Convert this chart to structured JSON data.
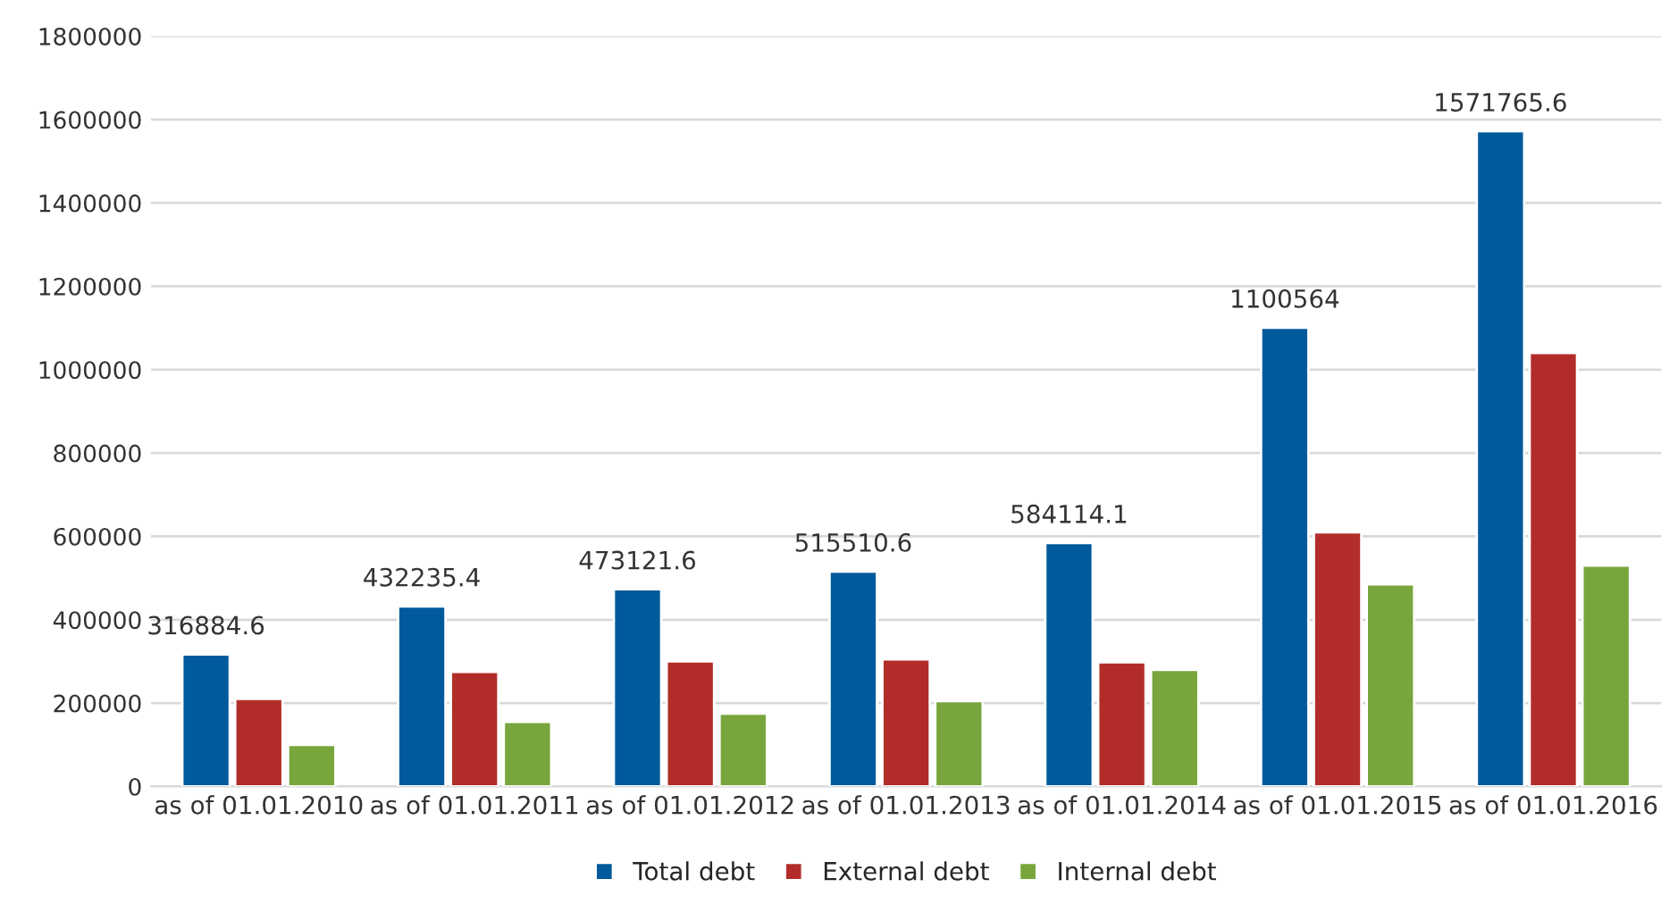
{
  "chart_data": {
    "type": "bar",
    "categories": [
      "as of 01.01.2010",
      "as of 01.01.2011",
      "as of 01.01.2012",
      "as of 01.01.2013",
      "as of 01.01.2014",
      "as of 01.01.2015",
      "as of 01.01.2016"
    ],
    "series": [
      {
        "name": "Total debt",
        "color": "#005a9c",
        "values": [
          316884.6,
          432235.4,
          473121.6,
          515510.6,
          584114.1,
          1100564,
          1571765.6
        ],
        "value_labels": [
          "316884.6",
          "432235.4",
          "473121.6",
          "515510.6",
          "584114.1",
          "1100564",
          "1571765.6"
        ]
      },
      {
        "name": "External debt",
        "color": "#b22d29",
        "values": [
          210000,
          275000,
          300000,
          305000,
          298000,
          610000,
          1040000
        ]
      },
      {
        "name": "Internal debt",
        "color": "#78a53c",
        "values": [
          100000,
          155000,
          175000,
          205000,
          280000,
          485000,
          530000
        ]
      }
    ],
    "ylim": [
      0,
      1800000
    ],
    "yticks": [
      0,
      200000,
      400000,
      600000,
      800000,
      1000000,
      1200000,
      1400000,
      1600000,
      1800000
    ],
    "grid": "y",
    "legend": "bottom"
  }
}
